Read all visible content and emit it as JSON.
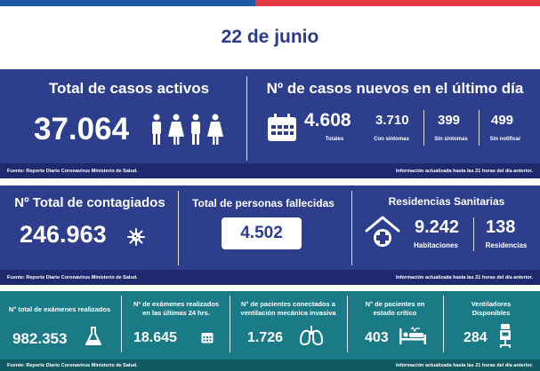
{
  "date": "22 de junio",
  "active_cases": {
    "title": "Total de casos activos",
    "value": "37.064"
  },
  "new_cases": {
    "title": "Nº de casos nuevos en el último día",
    "total": {
      "value": "4.608",
      "label": "Totales"
    },
    "symptomatic": {
      "value": "3.710",
      "label": "Con síntomas"
    },
    "asymptomatic": {
      "value": "399",
      "label": "Sin síntomas"
    },
    "unreported": {
      "value": "499",
      "label": "Sin notificar"
    }
  },
  "source_note": "Fuente: Reporte Diario Coronavirus Ministerio de Salud.",
  "update_note": "Información actualizada hasta las 21 horas  del día anterior.",
  "total_infected": {
    "title": "Nº Total de contagiados",
    "value": "246.963"
  },
  "deaths": {
    "title": "Total de personas fallecidas",
    "value": "4.502"
  },
  "residences": {
    "title": "Residencias Sanitarias",
    "rooms": {
      "value": "9.242",
      "label": "Habitaciones"
    },
    "count": {
      "value": "138",
      "label": "Residencias"
    }
  },
  "exams_total": {
    "title": "N° total de exámenes realizados",
    "value": "982.353"
  },
  "exams_24h": {
    "title_line1": "Nº de exámenes realizados",
    "title_line2": "en las últimas 24 hrs.",
    "value": "18.645"
  },
  "ventilated": {
    "title_line1": "N° de pacientes conectados a",
    "title_line2": "ventilación mecánica invasiva",
    "value": "1.726"
  },
  "critical": {
    "title_line1": "N° de pacientes  en",
    "title_line2": "estado crítico",
    "value": "403"
  },
  "ventilators": {
    "title_line1": "Ventiladores",
    "title_line2": "Disponibles",
    "value": "284"
  },
  "colors": {
    "navy": "#2d3e8d",
    "teal": "#1a7a86",
    "red": "#e63946",
    "blue": "#1d5aa3"
  }
}
